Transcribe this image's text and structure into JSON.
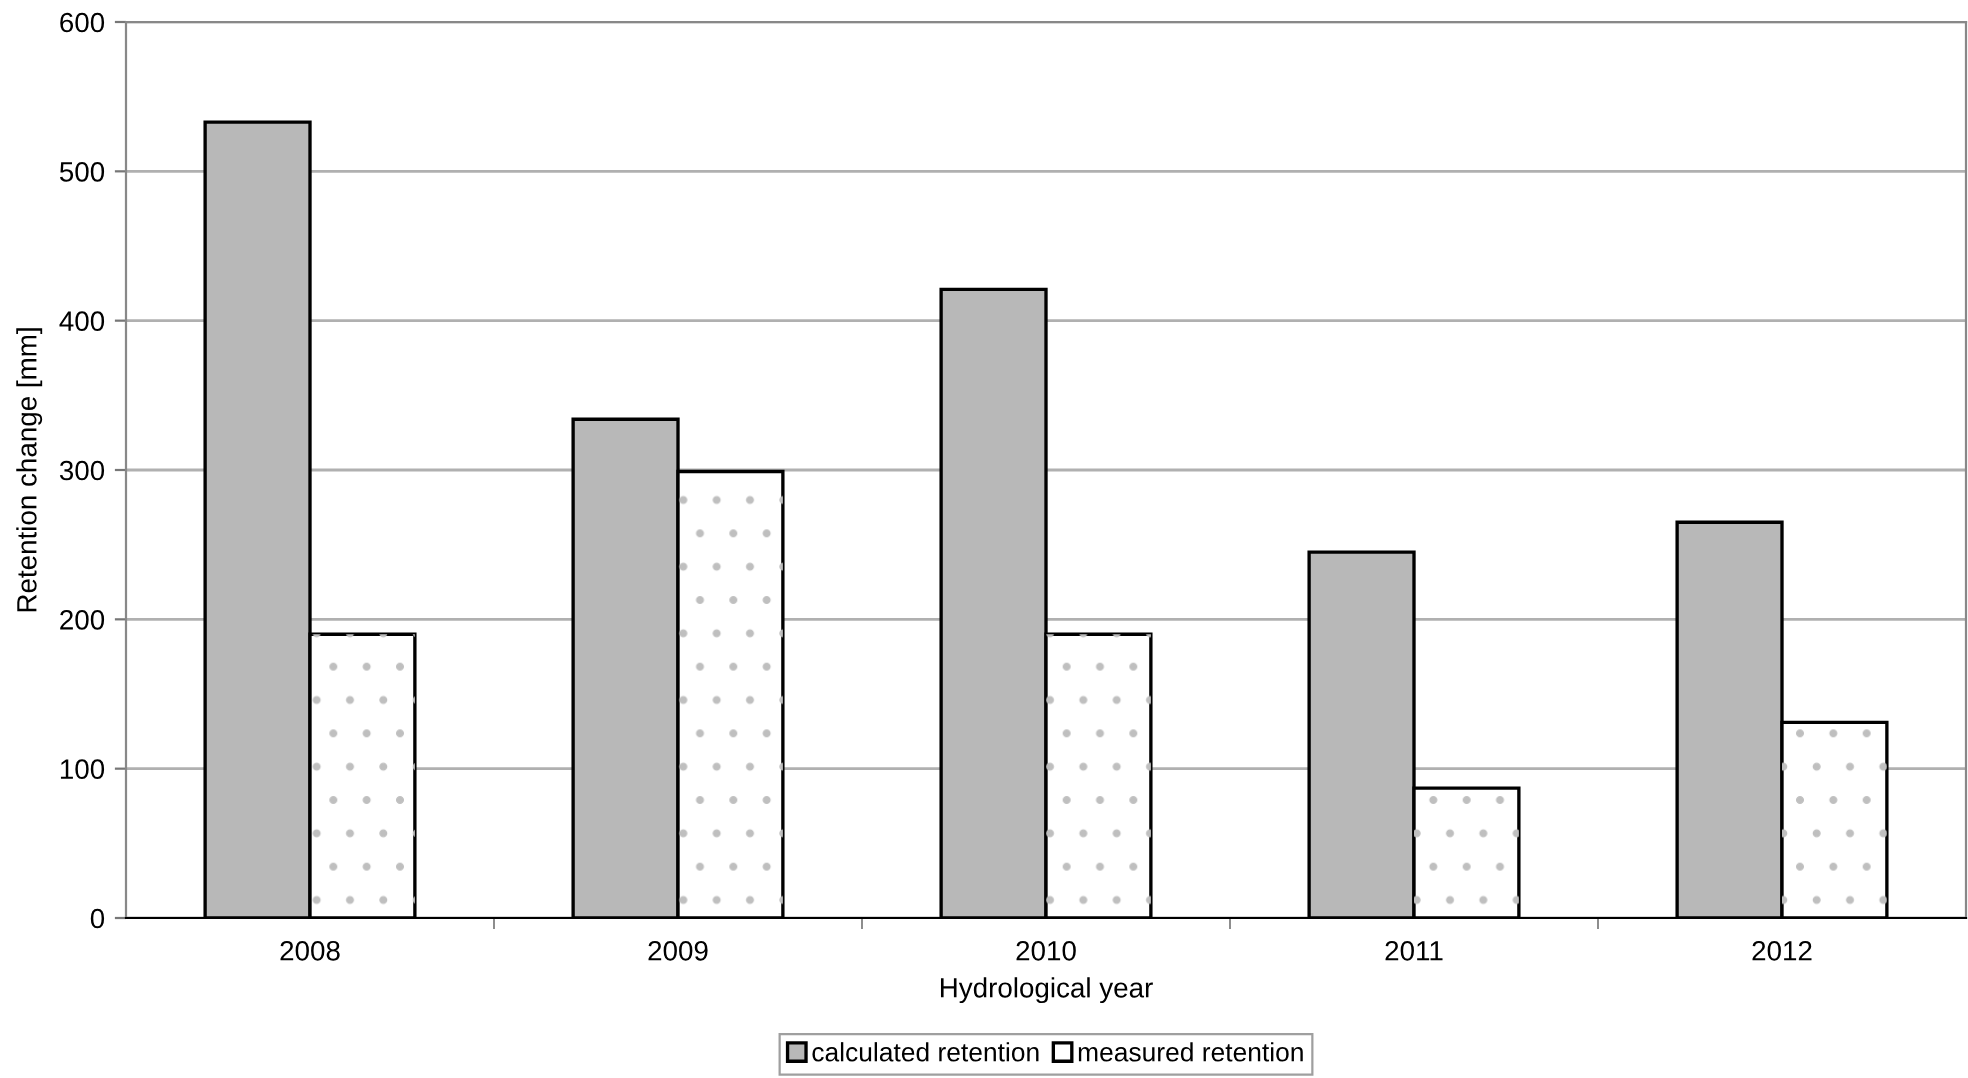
{
  "chart_data": {
    "type": "bar",
    "xlabel": "Hydrological year",
    "ylabel": "Retention change [mm]",
    "categories": [
      "2008",
      "2009",
      "2010",
      "2011",
      "2012"
    ],
    "series": [
      {
        "name": "calculated retention",
        "color": "#b8b8b8",
        "values": [
          533,
          334,
          421,
          245,
          265
        ]
      },
      {
        "name": "measured retention",
        "color": "#ffffff",
        "values": [
          190,
          299,
          190,
          87,
          131
        ]
      }
    ],
    "ylim": [
      0,
      600
    ],
    "yticks": [
      0,
      100,
      200,
      300,
      400,
      500,
      600
    ],
    "grid": "y",
    "legend": "bottom"
  }
}
